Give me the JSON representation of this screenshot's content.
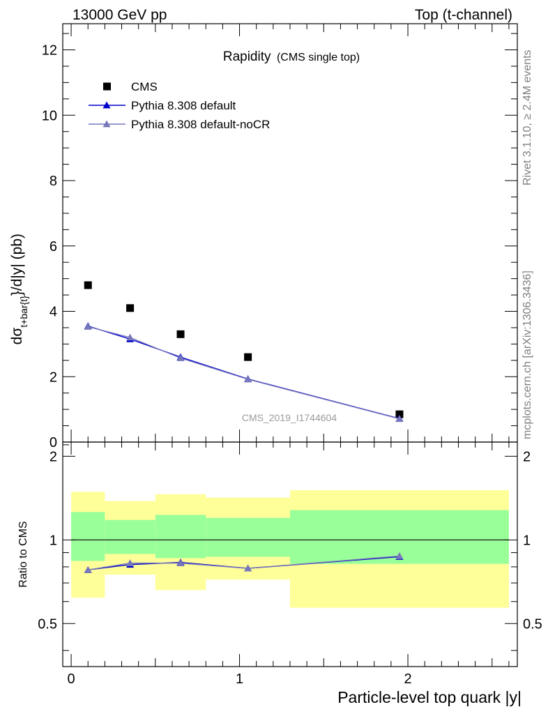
{
  "header": {
    "left": "13000 GeV pp",
    "right": "Top (t-channel)"
  },
  "side_labels": {
    "rivet": "Rivet 3.1.10, ≥ 2.4M events",
    "mcplots": "mcplots.cern.ch [arXiv:1306.3436]"
  },
  "reference_label": "CMS_2019_I1744604",
  "colors": {
    "cms": "#000000",
    "pythia_default": "#0000cc",
    "pythia_nocr": "#7777bb",
    "band_outer": "#ffff99",
    "band_inner": "#99ff99"
  },
  "chart_data": [
    {
      "type": "scatter",
      "panel": "main",
      "title": "Rapidity",
      "subtitle": "(CMS single top)",
      "ylabel_main": "dσ",
      "ylabel_sub": "t+bar{t}",
      "ylabel_rest": "}/d|y|  (pb)",
      "ylim": [
        0,
        12.8
      ],
      "xlim": [
        -0.05,
        2.65
      ],
      "yticks": [
        0,
        2,
        4,
        6,
        8,
        10,
        12
      ],
      "legend_placement": "top-left",
      "series": [
        {
          "name": "CMS",
          "marker": "square",
          "x": [
            0.1,
            0.35,
            0.65,
            1.05,
            1.95
          ],
          "y": [
            4.8,
            4.1,
            3.3,
            2.6,
            0.85
          ]
        },
        {
          "name": "Pythia 8.308 default",
          "marker": "triangle",
          "x": [
            0.1,
            0.35,
            0.65,
            1.05,
            1.95
          ],
          "y": [
            3.55,
            3.15,
            2.6,
            1.93,
            0.72
          ]
        },
        {
          "name": "Pythia 8.308 default-noCR",
          "marker": "triangle",
          "x": [
            0.1,
            0.35,
            0.65,
            1.05,
            1.95
          ],
          "y": [
            3.53,
            3.2,
            2.57,
            1.92,
            0.71
          ]
        }
      ]
    },
    {
      "type": "line",
      "panel": "ratio",
      "ylabel": "Ratio to CMS",
      "xlabel": "Particle-level top quark |y|",
      "ylim": [
        0.35,
        2.25
      ],
      "xlim": [
        -0.05,
        2.65
      ],
      "yticks": [
        0.5,
        1,
        2
      ],
      "xticks": [
        0,
        1,
        2
      ],
      "bins": [
        {
          "x0": 0.0,
          "x1": 0.2,
          "outer": [
            0.62,
            1.49
          ],
          "inner": [
            0.84,
            1.26
          ]
        },
        {
          "x0": 0.2,
          "x1": 0.5,
          "outer": [
            0.75,
            1.38
          ],
          "inner": [
            0.89,
            1.18
          ]
        },
        {
          "x0": 0.5,
          "x1": 0.8,
          "outer": [
            0.66,
            1.46
          ],
          "inner": [
            0.86,
            1.23
          ]
        },
        {
          "x0": 0.8,
          "x1": 1.3,
          "outer": [
            0.72,
            1.42
          ],
          "inner": [
            0.87,
            1.2
          ]
        },
        {
          "x0": 1.3,
          "x1": 2.6,
          "outer": [
            0.57,
            1.51
          ],
          "inner": [
            0.82,
            1.28
          ]
        }
      ],
      "series": [
        {
          "name": "Pythia 8.308 default",
          "x": [
            0.1,
            0.35,
            0.65,
            1.05,
            1.95
          ],
          "y": [
            0.78,
            0.815,
            0.83,
            0.79,
            0.87
          ]
        },
        {
          "name": "Pythia 8.308 default-noCR",
          "x": [
            0.1,
            0.35,
            0.65,
            1.05,
            1.95
          ],
          "y": [
            0.78,
            0.825,
            0.825,
            0.79,
            0.875
          ]
        }
      ]
    }
  ]
}
